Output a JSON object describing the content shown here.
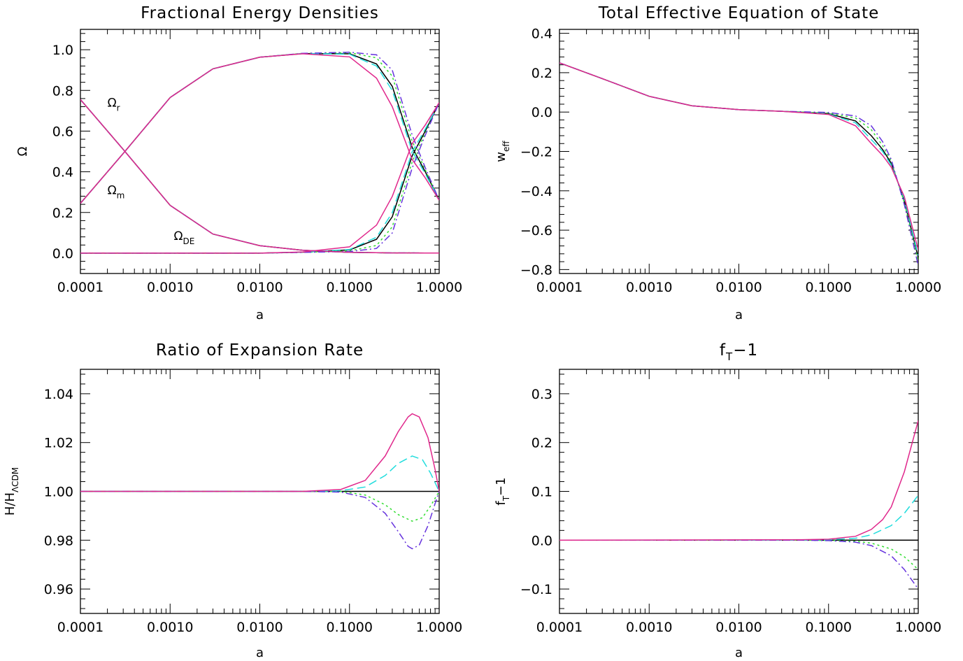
{
  "colors": {
    "lcdm": "#000000",
    "green": "#33dd33",
    "cyan": "#22dddd",
    "purple": "#6633dd",
    "magenta": "#e0288c"
  },
  "chart_data": [
    {
      "id": "omega",
      "type": "line",
      "title": "Fractional Energy Densities",
      "xlabel": "a",
      "ylabel": "Ω",
      "xscale": "log",
      "xlim": [
        0.0001,
        1.0
      ],
      "ylim": [
        -0.1,
        1.1
      ],
      "xticks": [
        0.0001,
        0.001,
        0.01,
        0.1,
        1.0
      ],
      "xticklabels": [
        "0.0001",
        "0.0010",
        "0.0100",
        "0.1000",
        "1.0000"
      ],
      "yticks": [
        0.0,
        0.2,
        0.4,
        0.6,
        0.8,
        1.0
      ],
      "yticklabels": [
        "0.0",
        "0.2",
        "0.4",
        "0.6",
        "0.8",
        "1.0"
      ],
      "annotations": [
        {
          "text": "Ω",
          "sub": "r",
          "x": 0.0002,
          "y": 0.72
        },
        {
          "text": "Ω",
          "sub": "m",
          "x": 0.0002,
          "y": 0.29
        },
        {
          "text": "Ω",
          "sub": "DE",
          "x": 0.0011,
          "y": 0.065
        }
      ],
      "series": [
        {
          "color": "lcdm",
          "dash": "",
          "x": [
            0.0001,
            0.0003,
            0.001,
            0.003,
            0.01,
            0.03,
            0.1,
            0.2,
            0.3,
            0.5,
            0.7,
            1.0
          ],
          "matter": [
            0.245,
            0.49,
            0.765,
            0.906,
            0.963,
            0.981,
            0.98,
            0.93,
            0.82,
            0.52,
            0.4,
            0.26
          ],
          "radiation": [
            0.755,
            0.51,
            0.235,
            0.094,
            0.037,
            0.014,
            0.004,
            0.002,
            0.001,
            0.001,
            0.0005,
            0.0003
          ],
          "de": [
            0.0,
            0.0,
            0.0,
            0.0,
            0.0,
            0.005,
            0.016,
            0.068,
            0.179,
            0.479,
            0.6,
            0.74
          ]
        },
        {
          "color": "green",
          "dash": "3,4",
          "x": [
            0.0001,
            0.0003,
            0.001,
            0.003,
            0.01,
            0.03,
            0.1,
            0.2,
            0.3,
            0.5,
            0.7,
            1.0
          ],
          "matter": [
            0.245,
            0.49,
            0.765,
            0.906,
            0.963,
            0.982,
            0.985,
            0.96,
            0.87,
            0.55,
            0.41,
            0.26
          ],
          "radiation": [
            0.755,
            0.51,
            0.235,
            0.094,
            0.037,
            0.014,
            0.004,
            0.002,
            0.001,
            0.001,
            0.0005,
            0.0003
          ],
          "de": [
            0.0,
            0.0,
            0.0,
            0.0,
            0.0,
            0.004,
            0.011,
            0.038,
            0.129,
            0.449,
            0.59,
            0.74
          ]
        },
        {
          "color": "cyan",
          "dash": "12,6",
          "x": [
            0.0001,
            0.0003,
            0.001,
            0.003,
            0.01,
            0.03,
            0.1,
            0.2,
            0.3,
            0.5,
            0.7,
            1.0
          ],
          "matter": [
            0.245,
            0.49,
            0.765,
            0.906,
            0.963,
            0.981,
            0.978,
            0.92,
            0.8,
            0.5,
            0.39,
            0.26
          ],
          "radiation": [
            0.755,
            0.51,
            0.235,
            0.094,
            0.037,
            0.014,
            0.004,
            0.002,
            0.001,
            0.001,
            0.0005,
            0.0003
          ],
          "de": [
            0.0,
            0.0,
            0.0,
            0.0,
            0.0,
            0.005,
            0.018,
            0.078,
            0.199,
            0.499,
            0.61,
            0.74
          ]
        },
        {
          "color": "purple",
          "dash": "10,4,2,4",
          "x": [
            0.0001,
            0.0003,
            0.001,
            0.003,
            0.01,
            0.03,
            0.1,
            0.2,
            0.3,
            0.5,
            0.7,
            1.0
          ],
          "matter": [
            0.245,
            0.49,
            0.765,
            0.906,
            0.963,
            0.982,
            0.988,
            0.975,
            0.9,
            0.58,
            0.42,
            0.26
          ],
          "radiation": [
            0.755,
            0.51,
            0.235,
            0.094,
            0.037,
            0.014,
            0.004,
            0.002,
            0.001,
            0.001,
            0.0005,
            0.0003
          ],
          "de": [
            0.0,
            0.0,
            0.0,
            0.0,
            0.0,
            0.004,
            0.008,
            0.023,
            0.099,
            0.419,
            0.58,
            0.74
          ]
        },
        {
          "color": "magenta",
          "dash": "",
          "x": [
            0.0001,
            0.0003,
            0.001,
            0.003,
            0.01,
            0.03,
            0.1,
            0.2,
            0.3,
            0.5,
            0.7,
            1.0
          ],
          "matter": [
            0.245,
            0.49,
            0.765,
            0.906,
            0.963,
            0.98,
            0.965,
            0.86,
            0.72,
            0.46,
            0.37,
            0.26
          ],
          "radiation": [
            0.755,
            0.51,
            0.235,
            0.094,
            0.037,
            0.014,
            0.004,
            0.002,
            0.001,
            0.001,
            0.0005,
            0.0003
          ],
          "de": [
            0.0,
            0.0,
            0.0,
            0.0,
            0.0,
            0.006,
            0.031,
            0.138,
            0.279,
            0.539,
            0.63,
            0.74
          ]
        }
      ]
    },
    {
      "id": "weff",
      "type": "line",
      "title": "Total Effective Equation of State",
      "xlabel": "a",
      "ylabel": "w",
      "ylabel_sub": "eff",
      "xscale": "log",
      "xlim": [
        0.0001,
        1.0
      ],
      "ylim": [
        -0.82,
        0.42
      ],
      "xticks": [
        0.0001,
        0.001,
        0.01,
        0.1,
        1.0
      ],
      "xticklabels": [
        "0.0001",
        "0.0010",
        "0.0100",
        "0.1000",
        "1.0000"
      ],
      "yticks": [
        -0.8,
        -0.6,
        -0.4,
        -0.2,
        0.0,
        0.2,
        0.4
      ],
      "yticklabels": [
        "−0.8",
        "−0.6",
        "−0.4",
        "−0.2",
        "0.0",
        "0.2",
        "0.4"
      ],
      "series": [
        {
          "color": "lcdm",
          "dash": "",
          "x": [
            0.0001,
            0.0003,
            0.001,
            0.003,
            0.01,
            0.03,
            0.1,
            0.2,
            0.3,
            0.4,
            0.5,
            0.7,
            1.0
          ],
          "y": [
            0.25,
            0.17,
            0.08,
            0.032,
            0.012,
            0.004,
            -0.008,
            -0.045,
            -0.12,
            -0.19,
            -0.26,
            -0.45,
            -0.74
          ]
        },
        {
          "color": "green",
          "dash": "3,4",
          "x": [
            0.0001,
            0.0003,
            0.001,
            0.003,
            0.01,
            0.03,
            0.1,
            0.2,
            0.3,
            0.4,
            0.5,
            0.7,
            1.0
          ],
          "y": [
            0.25,
            0.17,
            0.08,
            0.032,
            0.012,
            0.004,
            -0.005,
            -0.03,
            -0.09,
            -0.17,
            -0.25,
            -0.46,
            -0.76
          ]
        },
        {
          "color": "cyan",
          "dash": "12,6",
          "x": [
            0.0001,
            0.0003,
            0.001,
            0.003,
            0.01,
            0.03,
            0.1,
            0.2,
            0.3,
            0.4,
            0.5,
            0.7,
            1.0
          ],
          "y": [
            0.25,
            0.17,
            0.08,
            0.032,
            0.012,
            0.004,
            -0.01,
            -0.055,
            -0.14,
            -0.2,
            -0.27,
            -0.44,
            -0.73
          ]
        },
        {
          "color": "purple",
          "dash": "10,4,2,4",
          "x": [
            0.0001,
            0.0003,
            0.001,
            0.003,
            0.01,
            0.03,
            0.1,
            0.2,
            0.3,
            0.4,
            0.5,
            0.7,
            1.0
          ],
          "y": [
            0.25,
            0.17,
            0.08,
            0.032,
            0.012,
            0.004,
            -0.002,
            -0.02,
            -0.07,
            -0.15,
            -0.24,
            -0.47,
            -0.78
          ]
        },
        {
          "color": "magenta",
          "dash": "",
          "x": [
            0.0001,
            0.0003,
            0.001,
            0.003,
            0.01,
            0.03,
            0.1,
            0.2,
            0.3,
            0.4,
            0.5,
            0.7,
            1.0
          ],
          "y": [
            0.25,
            0.17,
            0.08,
            0.032,
            0.012,
            0.004,
            -0.012,
            -0.07,
            -0.16,
            -0.22,
            -0.28,
            -0.43,
            -0.7
          ]
        }
      ]
    },
    {
      "id": "hratio",
      "type": "line",
      "title": "Ratio of Expansion Rate",
      "xlabel": "a",
      "ylabel": "H/H",
      "ylabel_sub": "ΛCDM",
      "xscale": "log",
      "xlim": [
        0.0001,
        1.0
      ],
      "ylim": [
        0.95,
        1.05
      ],
      "xticks": [
        0.0001,
        0.001,
        0.01,
        0.1,
        1.0
      ],
      "xticklabels": [
        "0.0001",
        "0.0010",
        "0.0100",
        "0.1000",
        "1.0000"
      ],
      "yticks": [
        0.96,
        0.98,
        1.0,
        1.02,
        1.04
      ],
      "yticklabels": [
        "0.96",
        "0.98",
        "1.00",
        "1.02",
        "1.04"
      ],
      "series": [
        {
          "color": "lcdm",
          "dash": "",
          "x": [
            0.0001,
            1.0
          ],
          "y": [
            1.0,
            1.0
          ]
        },
        {
          "color": "green",
          "dash": "3,4",
          "x": [
            0.0001,
            0.03,
            0.08,
            0.15,
            0.25,
            0.35,
            0.5,
            0.65,
            0.8,
            1.0
          ],
          "y": [
            1.0,
            1.0,
            1.0,
            0.9985,
            0.9945,
            0.9905,
            0.9878,
            0.9892,
            0.994,
            1.0
          ]
        },
        {
          "color": "cyan",
          "dash": "12,6",
          "x": [
            0.0001,
            0.03,
            0.08,
            0.15,
            0.25,
            0.35,
            0.5,
            0.65,
            0.8,
            1.0
          ],
          "y": [
            1.0,
            1.0,
            1.0003,
            1.0018,
            1.0065,
            1.0115,
            1.0145,
            1.013,
            1.0075,
            1.0
          ]
        },
        {
          "color": "purple",
          "dash": "10,4,2,4",
          "x": [
            0.0001,
            0.03,
            0.08,
            0.15,
            0.25,
            0.35,
            0.45,
            0.5,
            0.6,
            0.75,
            0.9,
            1.0
          ],
          "y": [
            1.0,
            1.0,
            0.9997,
            0.9975,
            0.991,
            0.9835,
            0.9775,
            0.9765,
            0.978,
            0.986,
            0.995,
            1.0
          ]
        },
        {
          "color": "magenta",
          "dash": "",
          "x": [
            0.0001,
            0.03,
            0.08,
            0.15,
            0.25,
            0.35,
            0.45,
            0.5,
            0.6,
            0.75,
            0.9,
            1.0
          ],
          "y": [
            1.0,
            1.0,
            1.0008,
            1.0045,
            1.0145,
            1.0245,
            1.0305,
            1.0318,
            1.0305,
            1.022,
            1.009,
            1.0
          ]
        }
      ]
    },
    {
      "id": "ft",
      "type": "line",
      "title": "f",
      "title_sub": "T",
      "title_rest": "−1",
      "xlabel": "a",
      "ylabel": "f",
      "ylabel_sub": "T",
      "ylabel_rest": "−1",
      "xscale": "log",
      "xlim": [
        0.0001,
        1.0
      ],
      "ylim": [
        -0.15,
        0.35
      ],
      "xticks": [
        0.0001,
        0.001,
        0.01,
        0.1,
        1.0
      ],
      "xticklabels": [
        "0.0001",
        "0.0010",
        "0.0100",
        "0.1000",
        "1.0000"
      ],
      "yticks": [
        -0.1,
        0.0,
        0.1,
        0.2,
        0.3
      ],
      "yticklabels": [
        "−0.1",
        "0.0",
        "0.1",
        "0.2",
        "0.3"
      ],
      "series": [
        {
          "color": "lcdm",
          "dash": "",
          "x": [
            0.0001,
            1.0
          ],
          "y": [
            0.0,
            0.0
          ]
        },
        {
          "color": "green",
          "dash": "3,4",
          "x": [
            0.0001,
            0.05,
            0.1,
            0.2,
            0.3,
            0.5,
            0.7,
            1.0
          ],
          "y": [
            0.0,
            0.0,
            -0.0005,
            -0.002,
            -0.006,
            -0.018,
            -0.034,
            -0.06
          ]
        },
        {
          "color": "cyan",
          "dash": "12,6",
          "x": [
            0.0001,
            0.05,
            0.1,
            0.2,
            0.3,
            0.5,
            0.7,
            1.0
          ],
          "y": [
            0.0,
            0.0,
            0.001,
            0.004,
            0.011,
            0.03,
            0.055,
            0.092
          ]
        },
        {
          "color": "purple",
          "dash": "10,4,2,4",
          "x": [
            0.0001,
            0.05,
            0.1,
            0.2,
            0.3,
            0.5,
            0.7,
            1.0
          ],
          "y": [
            0.0,
            0.0,
            -0.0008,
            -0.004,
            -0.011,
            -0.032,
            -0.06,
            -0.1
          ]
        },
        {
          "color": "magenta",
          "dash": "",
          "x": [
            0.0001,
            0.05,
            0.1,
            0.2,
            0.3,
            0.4,
            0.5,
            0.7,
            1.0
          ],
          "y": [
            0.0,
            0.001,
            0.002,
            0.008,
            0.022,
            0.042,
            0.068,
            0.14,
            0.245
          ]
        }
      ]
    }
  ]
}
